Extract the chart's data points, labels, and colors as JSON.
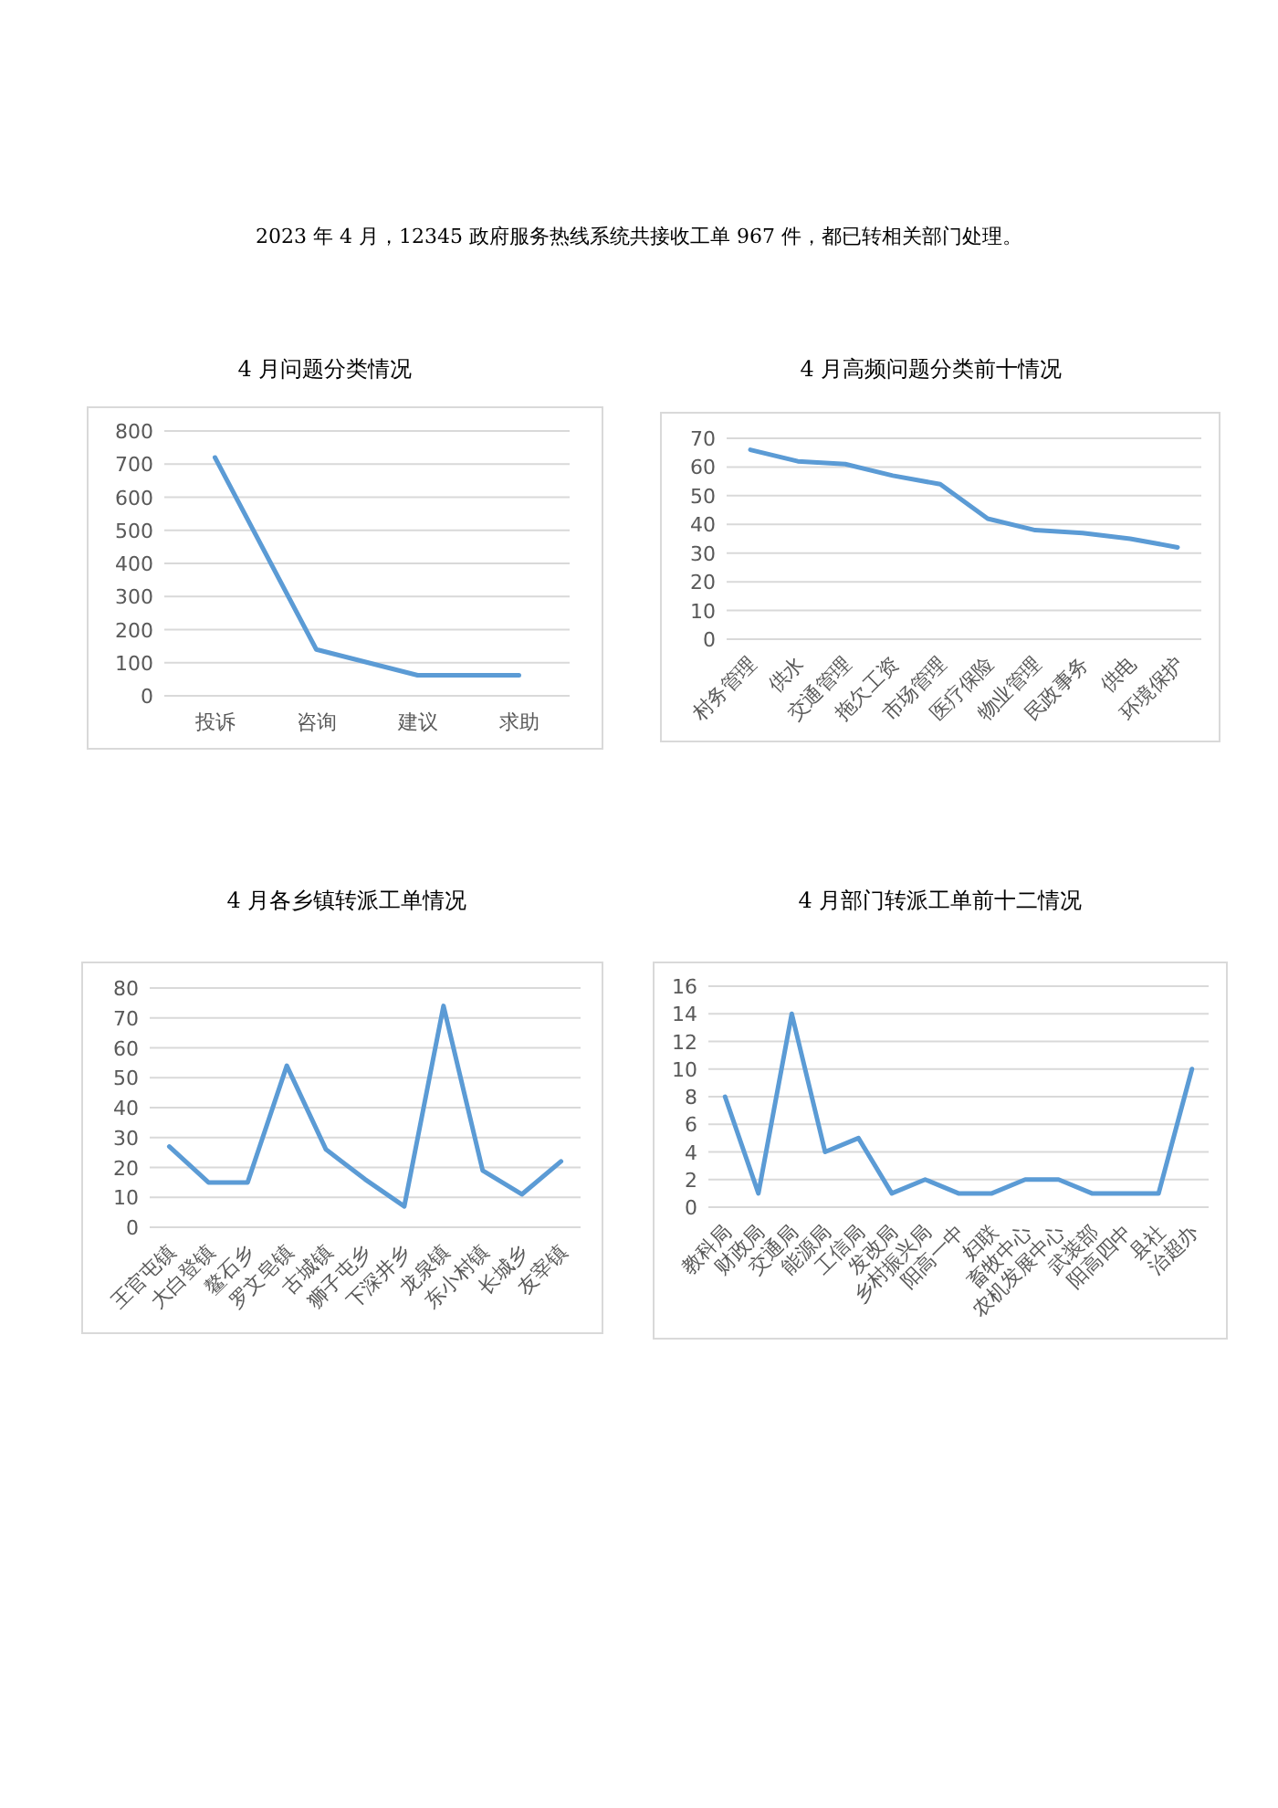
{
  "chart_data": [
    {
      "type": "line",
      "title": "4 月问题分类情况",
      "annotations": [
        "2023 年 4 月，12345 政府服务热线系统共接收工单 967 件，都已转相关部门处理。"
      ],
      "categories": [
        "投诉",
        "咨询",
        "建议",
        "求助"
      ],
      "values": [
        720,
        140,
        62,
        62
      ],
      "color": "#5b9bd5",
      "ylim": [
        0,
        800
      ],
      "yticks": [
        0,
        100,
        200,
        300,
        400,
        500,
        600,
        700,
        800
      ],
      "grid": "y"
    },
    {
      "type": "line",
      "title": "4 月高频问题分类前十情况",
      "categories": [
        "村务管理",
        "供水",
        "交通管理",
        "拖欠工资",
        "市场管理",
        "医疗保险",
        "物业管理",
        "民政事务",
        "供电",
        "环境保护"
      ],
      "values": [
        66,
        62,
        61,
        57,
        54,
        42,
        38,
        37,
        35,
        32
      ],
      "color": "#5b9bd5",
      "ylim": [
        0,
        70
      ],
      "yticks": [
        0,
        10,
        20,
        30,
        40,
        50,
        60,
        70
      ],
      "grid": "y"
    },
    {
      "type": "line",
      "title": "4 月各乡镇转派工单情况",
      "categories": [
        "王官屯镇",
        "大白登镇",
        "鳌石乡",
        "罗文皂镇",
        "古城镇",
        "狮子屯乡",
        "下深井乡",
        "龙泉镇",
        "东小村镇",
        "长城乡",
        "友宰镇"
      ],
      "values": [
        27,
        15,
        15,
        54,
        26,
        16,
        7,
        74,
        19,
        11,
        22
      ],
      "color": "#5b9bd5",
      "ylim": [
        0,
        80
      ],
      "yticks": [
        0,
        10,
        20,
        30,
        40,
        50,
        60,
        70,
        80
      ],
      "grid": "y"
    },
    {
      "type": "line",
      "title": "4 月部门转派工单前十二情况",
      "categories": [
        "教科局",
        "财政局",
        "交通局",
        "能源局",
        "工信局",
        "发改局",
        "乡村振兴局",
        "阳高一中",
        "妇联",
        "畜牧中心",
        "农机发展中心",
        "武装部",
        "阳高四中",
        "县社",
        "治超办"
      ],
      "values": [
        8,
        1,
        14,
        4,
        5,
        1,
        2,
        1,
        1,
        2,
        2,
        1,
        1,
        1,
        10
      ],
      "color": "#5b9bd5",
      "ylim": [
        0,
        16
      ],
      "yticks": [
        0,
        2,
        4,
        6,
        8,
        10,
        12,
        14,
        16
      ],
      "grid": "y"
    }
  ]
}
